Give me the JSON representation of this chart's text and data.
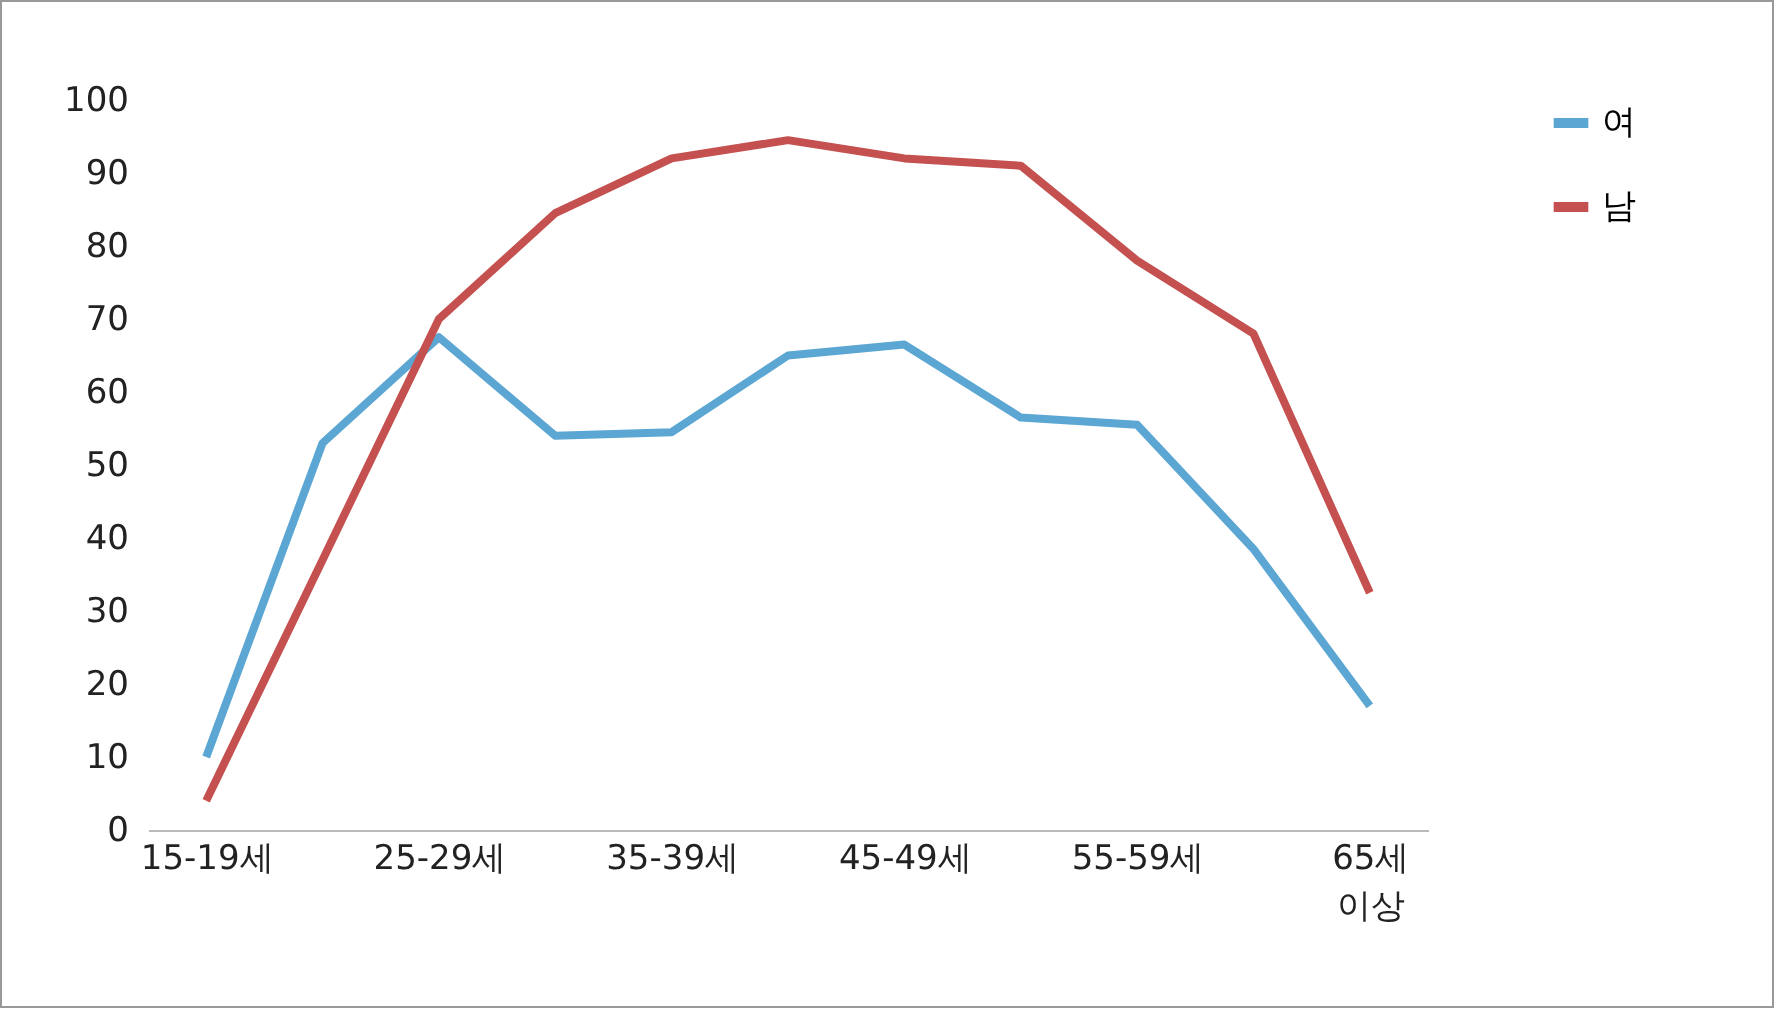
{
  "chart_data": {
    "type": "line",
    "categories": [
      "15-19세",
      null,
      "25-29세",
      null,
      "35-39세",
      null,
      "45-49세",
      null,
      "55-59세",
      null,
      "65세 이상"
    ],
    "series": [
      {
        "name": "여",
        "color": "#5ba6d2",
        "values": [
          10,
          53,
          67.5,
          54,
          54.5,
          65,
          66.5,
          56.5,
          55.5,
          38.5,
          17
        ]
      },
      {
        "name": "남",
        "color": "#c4504f",
        "values": [
          4,
          37,
          70,
          84.5,
          92,
          94.5,
          92,
          91,
          78,
          68,
          32.5
        ]
      }
    ],
    "ylim": [
      0,
      100
    ],
    "yticks": [
      0,
      10,
      20,
      30,
      40,
      50,
      60,
      70,
      80,
      90,
      100
    ],
    "grid": false,
    "legend": "right",
    "marker": "none",
    "line_style": "solid"
  }
}
